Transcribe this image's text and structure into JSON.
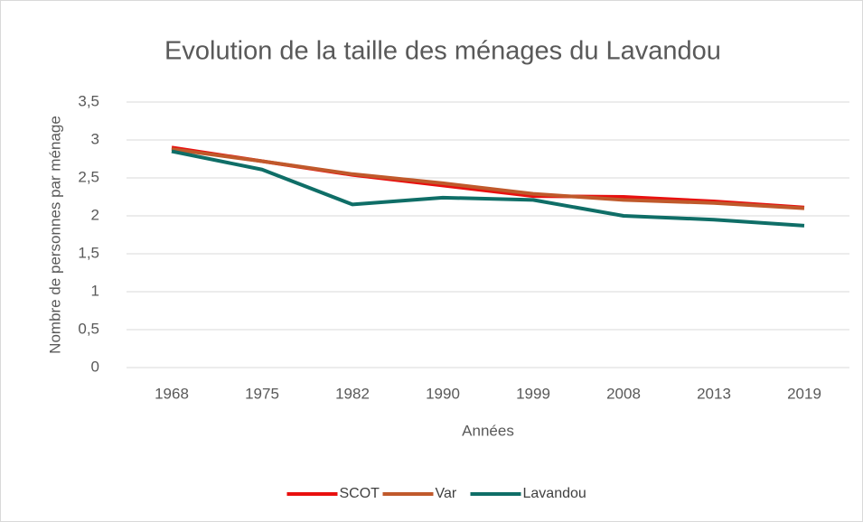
{
  "chart_data": {
    "type": "line",
    "title": "Evolution de la taille des ménages du Lavandou",
    "x_label": "Années",
    "y_label": "Nombre de personnes par ménage",
    "categories": [
      "1968",
      "1975",
      "1982",
      "1990",
      "1999",
      "2008",
      "2013",
      "2019"
    ],
    "series": [
      {
        "name": "SCOT",
        "color": "#e8100f",
        "values": [
          2.9,
          2.72,
          2.54,
          2.4,
          2.26,
          2.25,
          2.19,
          2.11
        ]
      },
      {
        "name": "Var",
        "color": "#c0592b",
        "values": [
          2.88,
          2.72,
          2.55,
          2.43,
          2.29,
          2.21,
          2.17,
          2.1
        ]
      },
      {
        "name": "Lavandou",
        "color": "#0f6e67",
        "values": [
          2.85,
          2.61,
          2.15,
          2.24,
          2.21,
          2.0,
          1.95,
          1.87
        ]
      }
    ],
    "ylim": [
      0,
      3.5
    ],
    "yticks": [
      0,
      {
        "value": 0.5,
        "label": "0,5"
      },
      1,
      {
        "value": 1.5,
        "label": "1,5"
      },
      2,
      {
        "value": 2.5,
        "label": "2,5"
      },
      3,
      {
        "value": 3.5,
        "label": "3,5"
      }
    ],
    "grid": true,
    "legend": "bottom"
  }
}
